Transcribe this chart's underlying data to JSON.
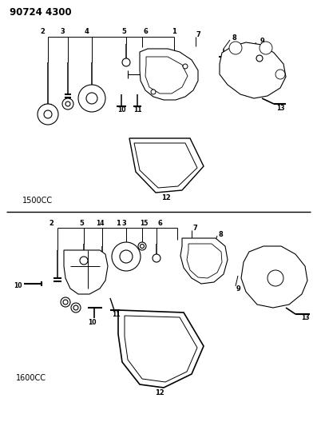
{
  "title": "90724 4300",
  "bg_color": "#ffffff",
  "section1_label": "1500CC",
  "section2_label": "1600CC",
  "figsize": [
    3.97,
    5.33
  ],
  "dpi": 100
}
